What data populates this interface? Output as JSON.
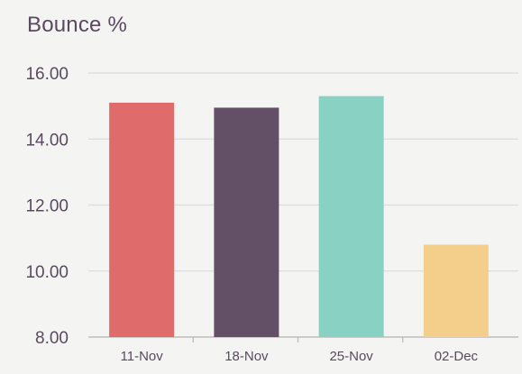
{
  "chart_data": {
    "type": "bar",
    "title": "Bounce %",
    "xlabel": "",
    "ylabel": "",
    "categories": [
      "11-Nov",
      "18-Nov",
      "25-Nov",
      "02-Dec"
    ],
    "values": [
      15.1,
      14.95,
      15.3,
      10.8
    ],
    "ylim": [
      8,
      16
    ],
    "yticks": [
      "8.00",
      "10.00",
      "12.00",
      "14.00",
      "16.00"
    ],
    "ytick_values": [
      8,
      10,
      12,
      14,
      16
    ],
    "grid": true,
    "legend": "none",
    "bar_colors": [
      "#df6b6b",
      "#634f66",
      "#89d1c3",
      "#f3cf8b"
    ],
    "grid_color": "#dcdcdc",
    "axis_color": "#bdbdbd"
  }
}
